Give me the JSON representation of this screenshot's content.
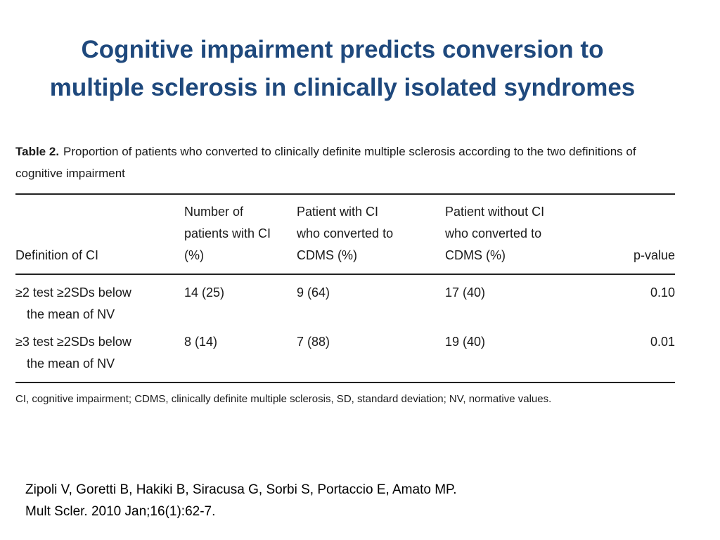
{
  "title": {
    "line1": "Cognitive impairment predicts conversion to",
    "line2": "multiple sclerosis in clinically isolated syndromes"
  },
  "table": {
    "label": "Table 2.",
    "caption": "Proportion of patients who converted to clinically definite multiple sclerosis according to the two definitions of cognitive impairment",
    "headers": [
      "Definition of CI",
      "Number of patients with CI (%)",
      "Patient with CI who converted to CDMS (%)",
      "Patient without CI who converted to CDMS (%)",
      "p-value"
    ],
    "rows": [
      {
        "def_line1": "≥2 test ≥2SDs below",
        "def_line2": "the mean of NV",
        "n_ci": "14 (25)",
        "ci_converted": "9 (64)",
        "no_ci_converted": "17 (40)",
        "p_value": "0.10"
      },
      {
        "def_line1": "≥3 test ≥2SDs below",
        "def_line2": "the mean of NV",
        "n_ci": "8 (14)",
        "ci_converted": "7 (88)",
        "no_ci_converted": "19 (40)",
        "p_value": "0.01"
      }
    ],
    "footnote": "CI, cognitive impairment; CDMS, clinically definite multiple sclerosis, SD, standard deviation; NV, normative values."
  },
  "citation": {
    "line1": "Zipoli V, Goretti B, Hakiki B, Siracusa G, Sorbi S, Portaccio E, Amato MP.",
    "line2": "Mult Scler. 2010 Jan;16(1):62-7."
  }
}
